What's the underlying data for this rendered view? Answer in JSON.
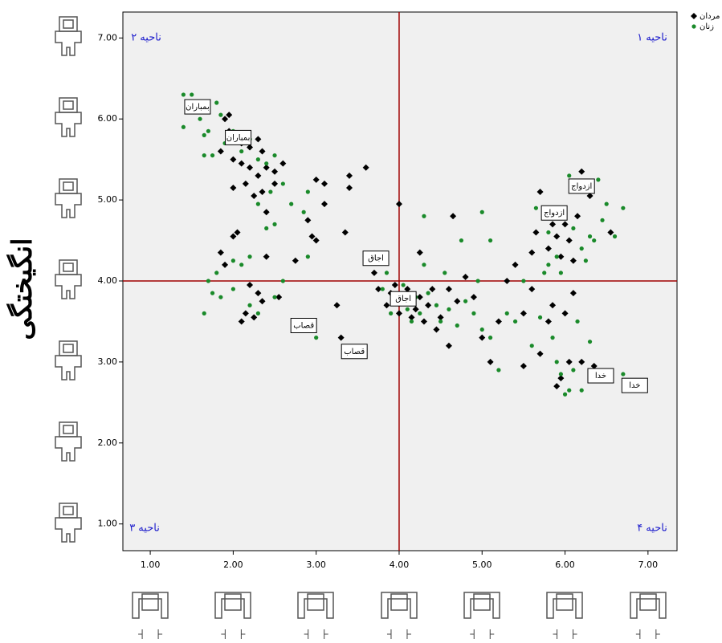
{
  "chart_data": {
    "type": "scatter",
    "y_label": "انگیختگی",
    "xlim": [
      0.67,
      7.35
    ],
    "ylim": [
      0.67,
      7.32
    ],
    "xticks": [
      {
        "value": 1,
        "label": "1.00"
      },
      {
        "value": 2,
        "label": "2.00"
      },
      {
        "value": 3,
        "label": "3.00"
      },
      {
        "value": 4,
        "label": "4.00"
      },
      {
        "value": 5,
        "label": "5.00"
      },
      {
        "value": 6,
        "label": "6.00"
      },
      {
        "value": 7,
        "label": "7.00"
      }
    ],
    "yticks": [
      {
        "value": 1,
        "label": "1.00"
      },
      {
        "value": 2,
        "label": "2.00"
      },
      {
        "value": 3,
        "label": "3.00"
      },
      {
        "value": 4,
        "label": "4.00"
      },
      {
        "value": 5,
        "label": "5.00"
      },
      {
        "value": 6,
        "label": "6.00"
      },
      {
        "value": 7,
        "label": "7.00"
      }
    ],
    "reference_lines": {
      "x": 4,
      "y": 4,
      "color": "#a00000"
    },
    "quadrant_labels": [
      "ناحیه ۱",
      "ناحیه ۲",
      "ناحیه ۳",
      "ناحیه ۴"
    ],
    "legend": "top-right",
    "series": [
      {
        "name": "مردان",
        "color": "#000000",
        "marker": "diamond",
        "x": [
          1.9,
          1.95,
          2.0,
          2.1,
          2.2,
          2.3,
          2.35,
          2.0,
          2.1,
          2.2,
          2.3,
          2.4,
          2.5,
          2.6,
          2.15,
          2.25,
          2.35,
          2.5,
          2.0,
          1.85,
          1.95,
          2.4,
          3.0,
          3.1,
          3.1,
          2.9,
          2.95,
          3.0,
          3.35,
          3.4,
          3.6,
          3.4,
          2.75,
          2.05,
          2.0,
          1.85,
          1.9,
          2.2,
          2.3,
          2.35,
          2.55,
          2.15,
          2.1,
          2.25,
          2.4,
          3.25,
          3.3,
          4.0,
          3.6,
          3.7,
          3.75,
          3.85,
          3.9,
          3.95,
          4.0,
          4.05,
          4.1,
          4.15,
          4.2,
          4.25,
          4.3,
          4.35,
          4.4,
          4.45,
          4.5,
          4.6,
          4.65,
          4.7,
          4.8,
          4.9,
          5.0,
          5.1,
          5.2,
          4.6,
          4.25,
          5.3,
          5.4,
          5.5,
          5.6,
          5.7,
          5.5,
          5.8,
          5.9,
          5.95,
          6.05,
          6.2,
          6.35,
          5.65,
          5.7,
          5.8,
          5.85,
          5.9,
          5.95,
          6.0,
          6.05,
          6.1,
          6.15,
          6.2,
          6.3,
          5.75,
          6.55,
          5.6,
          6.0,
          6.1,
          5.85
        ],
        "y": [
          6.0,
          5.85,
          5.75,
          5.7,
          5.65,
          5.75,
          5.6,
          5.5,
          5.45,
          5.4,
          5.3,
          5.4,
          5.35,
          5.45,
          5.2,
          5.05,
          5.1,
          5.2,
          5.15,
          5.6,
          6.05,
          4.85,
          5.25,
          5.2,
          4.95,
          4.75,
          4.55,
          4.5,
          4.6,
          5.3,
          5.4,
          5.15,
          4.25,
          4.6,
          4.55,
          4.35,
          4.2,
          3.95,
          3.85,
          3.75,
          3.8,
          3.6,
          3.5,
          3.55,
          4.3,
          3.7,
          3.3,
          4.95,
          4.3,
          4.1,
          3.9,
          3.7,
          3.85,
          3.95,
          3.6,
          3.75,
          3.9,
          3.55,
          3.65,
          3.8,
          3.5,
          3.7,
          3.9,
          3.4,
          3.55,
          3.9,
          4.8,
          3.75,
          4.05,
          3.8,
          3.3,
          3.0,
          3.5,
          3.2,
          4.35,
          4.0,
          4.2,
          3.6,
          3.9,
          3.1,
          2.95,
          3.5,
          2.7,
          2.8,
          3.0,
          3.0,
          2.95,
          4.6,
          5.1,
          4.4,
          4.7,
          4.55,
          4.3,
          4.7,
          4.5,
          4.25,
          4.8,
          5.35,
          5.05,
          4.8,
          4.6,
          4.35,
          3.6,
          3.85,
          3.7
        ]
      },
      {
        "name": "زنان",
        "color": "#1a8a2a",
        "marker": "circle",
        "x": [
          1.4,
          1.5,
          1.45,
          1.55,
          1.4,
          1.6,
          1.65,
          1.7,
          1.8,
          1.85,
          1.9,
          1.75,
          1.65,
          2.0,
          2.1,
          2.2,
          2.3,
          2.4,
          2.5,
          2.6,
          2.7,
          2.85,
          2.45,
          2.5,
          2.3,
          2.2,
          2.4,
          2.1,
          2.0,
          1.8,
          1.75,
          1.7,
          1.65,
          1.85,
          2.2,
          2.3,
          2.0,
          2.6,
          2.5,
          2.9,
          2.9,
          3.0,
          3.8,
          3.85,
          3.9,
          3.95,
          4.05,
          4.1,
          4.15,
          4.2,
          4.25,
          4.3,
          4.3,
          4.35,
          4.45,
          4.5,
          4.55,
          4.6,
          4.7,
          4.8,
          4.9,
          5.0,
          5.0,
          5.1,
          5.2,
          5.1,
          5.3,
          5.4,
          4.75,
          4.95,
          5.5,
          5.6,
          5.7,
          5.75,
          5.8,
          5.85,
          5.9,
          5.95,
          6.0,
          6.05,
          6.1,
          6.2,
          6.3,
          5.9,
          5.95,
          6.0,
          6.05,
          6.1,
          6.2,
          6.25,
          6.3,
          6.4,
          6.45,
          6.5,
          6.6,
          6.7,
          5.8,
          6.35,
          6.7,
          6.15,
          5.65
        ],
        "y": [
          6.3,
          6.3,
          6.2,
          6.1,
          5.9,
          6.0,
          5.8,
          5.85,
          6.2,
          6.05,
          5.7,
          5.55,
          5.55,
          5.85,
          5.6,
          5.75,
          5.5,
          5.45,
          5.55,
          5.2,
          4.95,
          4.85,
          5.1,
          4.7,
          4.95,
          4.3,
          4.65,
          4.2,
          4.25,
          4.1,
          3.85,
          4.0,
          3.6,
          3.8,
          3.7,
          3.6,
          3.9,
          4.0,
          3.8,
          5.1,
          4.3,
          3.3,
          3.9,
          4.1,
          3.6,
          3.8,
          3.95,
          3.65,
          3.5,
          3.8,
          3.6,
          4.2,
          4.8,
          3.85,
          3.7,
          3.5,
          4.1,
          3.65,
          3.45,
          3.75,
          3.6,
          4.85,
          3.4,
          4.5,
          2.9,
          3.3,
          3.6,
          3.5,
          4.5,
          4.0,
          4.0,
          3.2,
          3.55,
          4.1,
          4.2,
          3.3,
          3.0,
          2.85,
          2.6,
          2.65,
          2.9,
          2.65,
          3.25,
          4.3,
          4.1,
          4.8,
          5.3,
          4.65,
          4.4,
          4.25,
          4.55,
          5.25,
          4.75,
          4.95,
          4.55,
          4.9,
          4.6,
          4.5,
          2.85,
          3.5,
          4.9
        ]
      }
    ],
    "annotations": [
      {
        "text": "بمباران",
        "x": 1.57,
        "y": 6.15
      },
      {
        "text": "بمباران",
        "x": 2.06,
        "y": 5.77
      },
      {
        "text": "ازدواج",
        "x": 6.2,
        "y": 5.17
      },
      {
        "text": "ازدواج",
        "x": 5.87,
        "y": 4.84
      },
      {
        "text": "اجاق",
        "x": 3.72,
        "y": 4.28
      },
      {
        "text": "اجاق",
        "x": 4.05,
        "y": 3.78
      },
      {
        "text": "قصاب",
        "x": 2.85,
        "y": 3.45
      },
      {
        "text": "قصاب",
        "x": 3.46,
        "y": 3.13
      },
      {
        "text": "خدا",
        "x": 6.43,
        "y": 2.83
      },
      {
        "text": "خدا",
        "x": 6.84,
        "y": 2.71
      }
    ]
  }
}
